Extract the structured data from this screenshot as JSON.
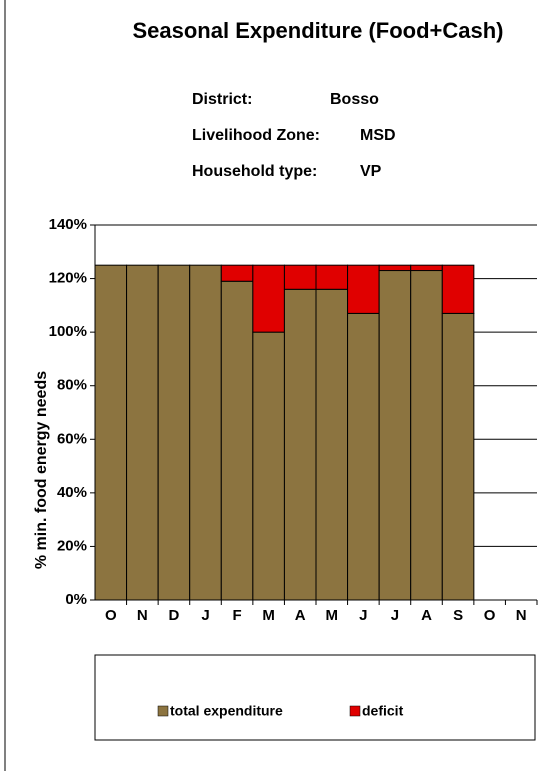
{
  "chart_data": {
    "type": "bar",
    "stacked": true,
    "title": "Seasonal Expenditure (Food+Cash)",
    "info": [
      {
        "label": "District:",
        "value": "Bosso"
      },
      {
        "label": "Livelihood Zone:",
        "value": "MSD"
      },
      {
        "label": "Household type:",
        "value": "VP"
      }
    ],
    "y_label": "% min. food energy needs",
    "categories": [
      "O",
      "N",
      "D",
      "J",
      "F",
      "M",
      "A",
      "M",
      "J",
      "J",
      "A",
      "S",
      "O",
      "N"
    ],
    "series": [
      {
        "name": "total expenditure",
        "color": "#8c7440",
        "values": [
          125,
          125,
          125,
          125,
          119,
          100,
          116,
          116,
          107,
          123,
          123,
          107,
          null,
          null
        ]
      },
      {
        "name": "deficit",
        "color": "#e00000",
        "values": [
          0,
          0,
          0,
          0,
          6,
          25,
          9,
          9,
          18,
          2,
          2,
          18,
          null,
          null
        ]
      }
    ],
    "ylim": [
      0,
      140
    ],
    "yticks": [
      {
        "value": 0,
        "label": "0%"
      },
      {
        "value": 20,
        "label": "20%"
      },
      {
        "value": 40,
        "label": "40%"
      },
      {
        "value": 60,
        "label": "60%"
      },
      {
        "value": 80,
        "label": "80%"
      },
      {
        "value": 100,
        "label": "100%"
      },
      {
        "value": 120,
        "label": "120%"
      },
      {
        "value": 140,
        "label": "140%"
      }
    ],
    "grid": true,
    "legend": "bottom"
  }
}
